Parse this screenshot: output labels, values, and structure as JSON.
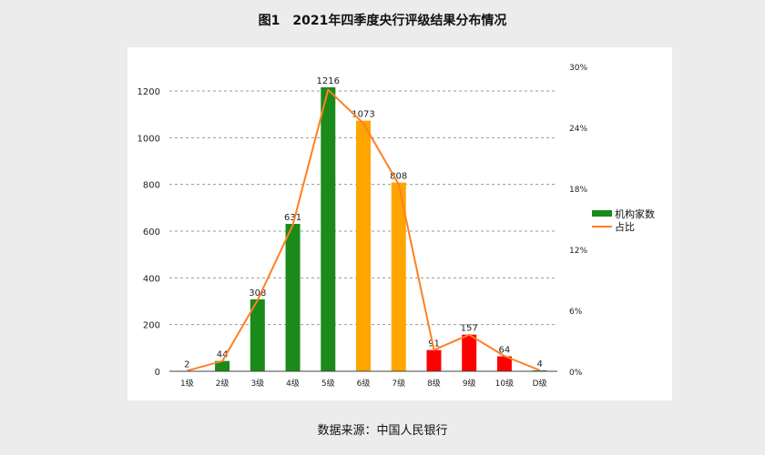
{
  "title": "图1　2021年四季度央行评级结果分布情况",
  "source": "数据来源：中国人民银行",
  "chart_data": {
    "type": "bar",
    "categories": [
      "1级",
      "2级",
      "3级",
      "4级",
      "5级",
      "6级",
      "7级",
      "8级",
      "9级",
      "10级",
      "D级"
    ],
    "series": [
      {
        "name": "机构家数",
        "kind": "bar",
        "values": [
          2,
          44,
          308,
          631,
          1216,
          1073,
          808,
          91,
          157,
          64,
          4
        ]
      },
      {
        "name": "占比",
        "kind": "line",
        "axis": "right",
        "values": [
          0.05,
          1.0,
          7.0,
          14.4,
          27.7,
          24.4,
          18.4,
          2.1,
          3.6,
          1.5,
          0.1
        ],
        "color": "#ff7f24"
      }
    ],
    "bar_colors": [
      "#1a8a1a",
      "#1a8a1a",
      "#1a8a1a",
      "#1a8a1a",
      "#1a8a1a",
      "#ffa500",
      "#ffa500",
      "#ff0000",
      "#ff0000",
      "#ff0000",
      "#1a8a1a"
    ],
    "left_axis": {
      "ylim": [
        0,
        1300
      ],
      "ticks": [
        0,
        200,
        400,
        600,
        800,
        1000,
        1200
      ]
    },
    "right_axis": {
      "ylim": [
        0,
        30
      ],
      "tick_labels": [
        "0%",
        "6%",
        "12%",
        "18%",
        "24%",
        "30%"
      ],
      "tick_values": [
        0,
        6,
        12,
        18,
        24,
        30
      ]
    },
    "grid": true,
    "legend": "right"
  }
}
